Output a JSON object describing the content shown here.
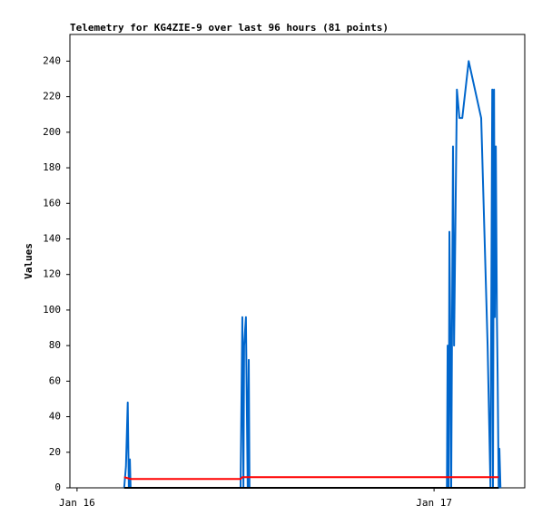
{
  "chart_data": {
    "type": "line",
    "title": "Telemetry for KG4ZIE-9 over last 96 hours (81 points)",
    "y_label": "Values",
    "xlim": [
      15.98,
      17.254
    ],
    "xticks": [
      {
        "value": 16,
        "label": "Jan 16"
      },
      {
        "value": 17,
        "label": "Jan 17"
      }
    ],
    "ylim": [
      0,
      255
    ],
    "yticks": [
      0,
      20,
      40,
      60,
      80,
      100,
      120,
      140,
      160,
      180,
      200,
      220,
      240
    ],
    "series": [
      {
        "color": "#0066cc",
        "x": [
          16.132,
          16.137,
          16.142,
          16.145,
          16.148,
          16.15,
          16.458,
          16.463,
          16.466,
          16.468,
          16.473,
          16.478,
          16.481,
          16.483,
          17.036,
          17.038,
          17.041,
          17.043,
          17.046,
          17.048,
          17.053,
          17.056,
          17.064,
          17.071,
          17.079,
          17.097,
          17.132,
          17.15,
          17.158,
          17.163,
          17.165,
          17.168,
          17.17,
          17.173,
          17.176,
          17.178,
          17.181,
          17.183,
          17.186
        ],
        "values": [
          0,
          12,
          48,
          0,
          16,
          0,
          0,
          96,
          0,
          80,
          96,
          0,
          72,
          0,
          0,
          80,
          0,
          144,
          72,
          0,
          192,
          80,
          224,
          208,
          208,
          240,
          208,
          80,
          0,
          224,
          0,
          224,
          96,
          192,
          96,
          64,
          0,
          22,
          0
        ]
      },
      {
        "color": "#ff0000",
        "x": [
          16.132,
          16.15,
          16.458,
          16.463,
          17.181
        ],
        "values": [
          6,
          5,
          5,
          6,
          6
        ]
      },
      {
        "color": "#000000",
        "x": [
          16.132,
          17.181
        ],
        "values": [
          0,
          0
        ]
      }
    ]
  }
}
